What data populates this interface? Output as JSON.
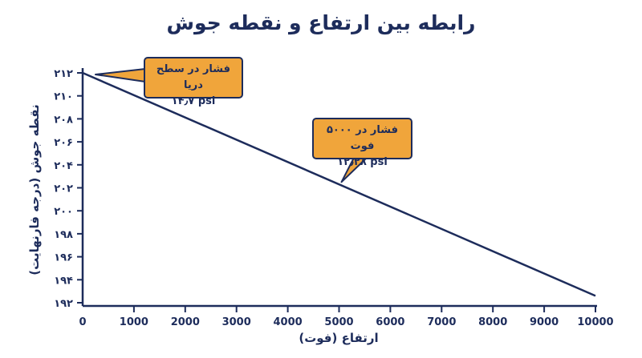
{
  "chart_data": {
    "type": "line",
    "title": "رابطه بین ارتفاع و نقطه جوش",
    "xlabel": "ارتفاع (فوت)",
    "ylabel": "نقطه جوش (درجه فارنهایت)",
    "xlim": [
      0,
      10000
    ],
    "ylim": [
      192,
      212
    ],
    "x_ticks": [
      0,
      1000,
      2000,
      3000,
      4000,
      5000,
      6000,
      7000,
      8000,
      9000,
      10000
    ],
    "x_tick_labels": [
      "0",
      "1000",
      "2000",
      "3000",
      "4000",
      "5000",
      "6000",
      "7000",
      "8000",
      "9000",
      "10000"
    ],
    "y_ticks": [
      192,
      194,
      196,
      198,
      200,
      202,
      204,
      206,
      208,
      210,
      212
    ],
    "y_tick_labels": [
      "۱۹۲",
      "۱۹۴",
      "۱۹۶",
      "۱۹۸",
      "۲۰۰",
      "۲۰۲",
      "۲۰۴",
      "۲۰۶",
      "۲۰۸",
      "۲۱۰",
      "۲۱۲"
    ],
    "grid": false,
    "series": [
      {
        "x": [
          0,
          10000
        ],
        "y": [
          212,
          192.6
        ]
      }
    ],
    "annotations": [
      {
        "line1": "فشار در سطح دریا",
        "line2": "۱۴٫۷ psi",
        "x": 0,
        "y": 212
      },
      {
        "line1": "فشار در ۵۰۰۰ فوت",
        "line2": "۱۲٫۲۸ psi",
        "x": 5000,
        "y": 202.5
      }
    ],
    "colors": {
      "line": "#1d2c5b",
      "axis": "#1d2c5b",
      "callout_fill": "#f0a53b",
      "text": "#1d2c5b"
    }
  }
}
